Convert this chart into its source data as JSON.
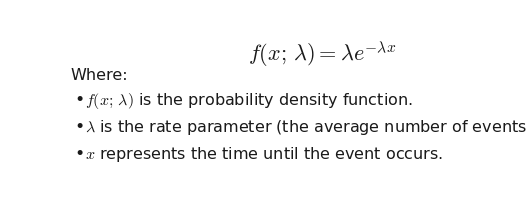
{
  "formula": "$f(x;\\, \\lambda) = \\lambda e^{-\\lambda x}$",
  "where_label": "Where:",
  "bullet_lines": [
    "$f(x;\\, \\lambda)$ is the probability density function.",
    "$\\lambda$ is the rate parameter (the average number of events per time unit).",
    "$x$ represents the time until the event occurs."
  ],
  "bg_color": "#ffffff",
  "text_color": "#1a1a1a",
  "formula_fontsize": 16,
  "where_fontsize": 11.5,
  "bullet_fontsize": 11.5,
  "fig_width": 5.32,
  "fig_height": 2.04,
  "dpi": 100
}
